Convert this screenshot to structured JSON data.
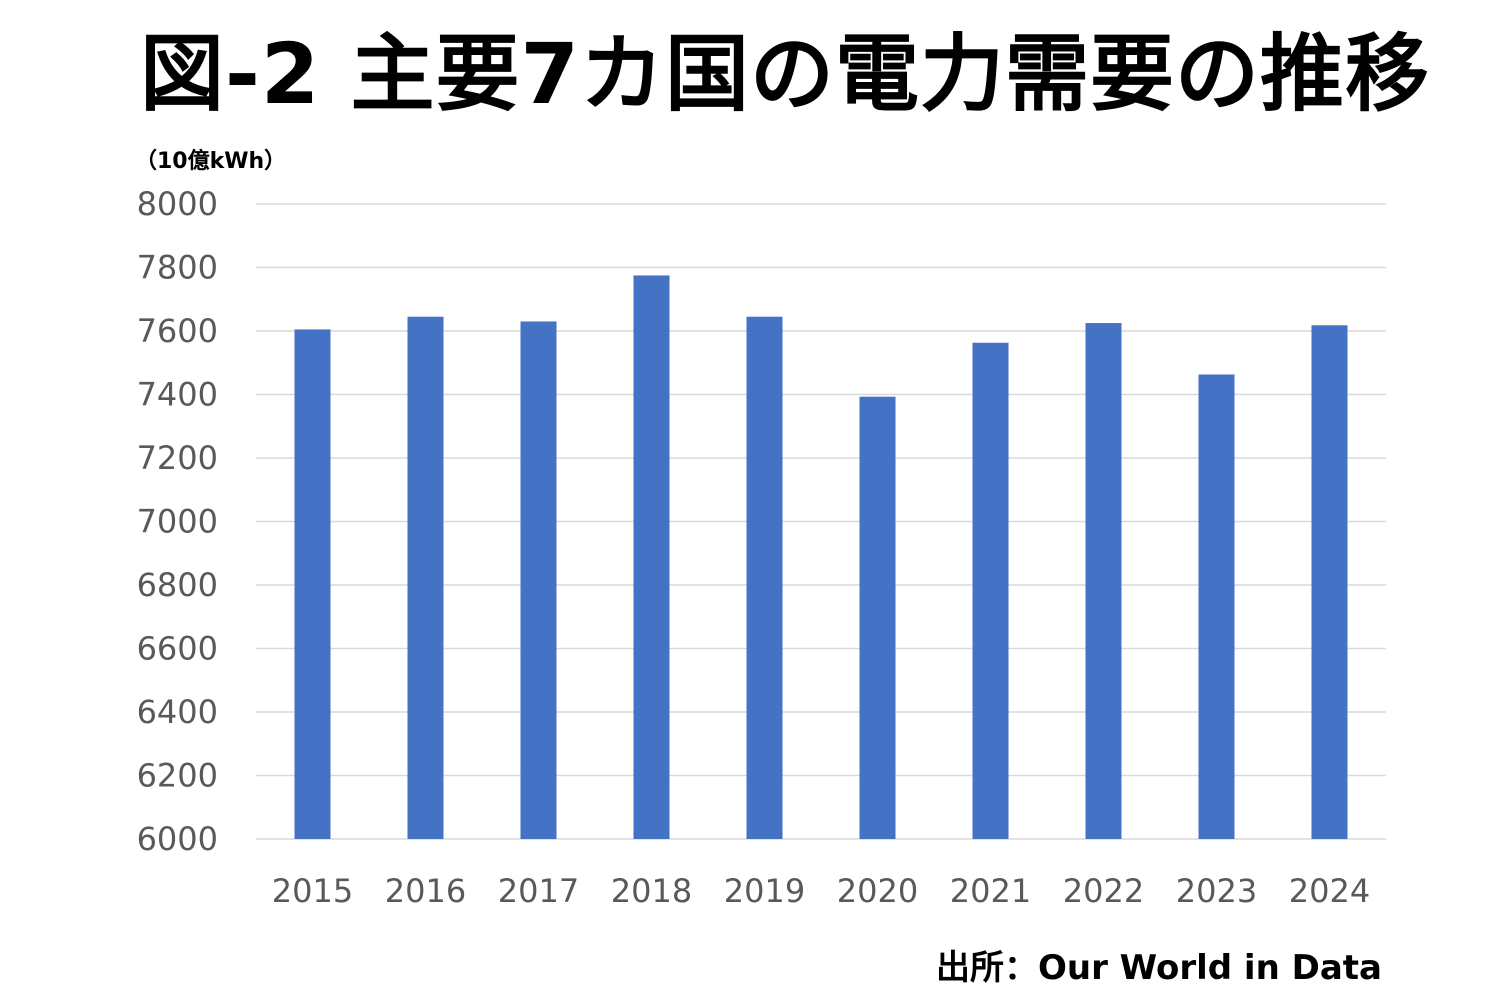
{
  "header": {
    "title": "図-2 主要7カ国の電力需要の推移",
    "unit_label": "（10億kWh）"
  },
  "footer": {
    "source": "出所：Our World in Data"
  },
  "colors": {
    "bar": "#4472C4",
    "grid": "#D9D9D9",
    "tick_text": "#595959"
  },
  "chart_data": {
    "type": "bar",
    "title": "図-2 主要7カ国の電力需要の推移",
    "xlabel": "",
    "ylabel": "（10億kWh）",
    "categories": [
      "2015",
      "2016",
      "2017",
      "2018",
      "2019",
      "2020",
      "2021",
      "2022",
      "2023",
      "2024"
    ],
    "values": [
      7605,
      7645,
      7630,
      7775,
      7645,
      7393,
      7563,
      7625,
      7463,
      7618
    ],
    "ylim": [
      6000,
      8000
    ],
    "yticks": [
      "6000",
      "6200",
      "6400",
      "6600",
      "6800",
      "7000",
      "7200",
      "7400",
      "7600",
      "7800",
      "8000"
    ],
    "grid": true,
    "legend": "none"
  }
}
